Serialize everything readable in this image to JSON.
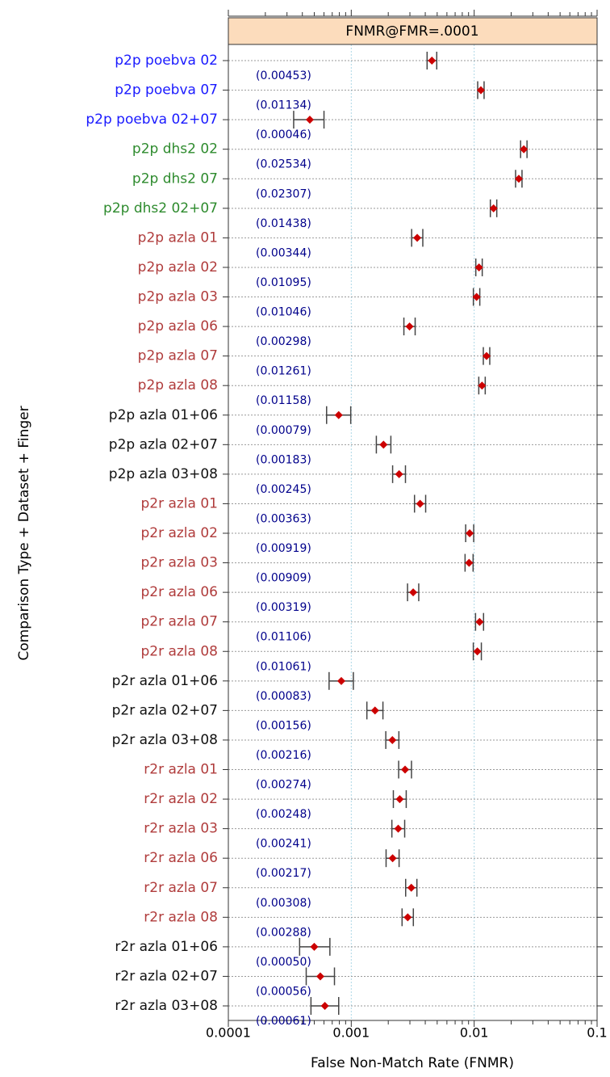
{
  "chart_data": {
    "type": "dot_errorbar",
    "strip_title": "FNMR@FMR=.0001",
    "xlabel": "False Non-Match Rate (FNMR)",
    "ylabel": "Comparison Type + Dataset + Finger",
    "xscale": "log",
    "xlim": [
      0.0001,
      0.1
    ],
    "xticks": [
      {
        "value": 0.0001,
        "label": "0.0001"
      },
      {
        "value": 0.001,
        "label": "0.001"
      },
      {
        "value": 0.01,
        "label": "0.01"
      },
      {
        "value": 0.1,
        "label": "0.1"
      }
    ],
    "grid": true,
    "point_color": "#cc0000",
    "errorbar_color": "#444444",
    "value_label_color": "#00008b",
    "strip_color": "#fcdcbc",
    "categories": [
      "p2p poebva 02",
      "p2p poebva 07",
      "p2p poebva 02+07",
      "p2p dhs2 02",
      "p2p dhs2 07",
      "p2p dhs2 02+07",
      "p2p azla 01",
      "p2p azla 02",
      "p2p azla 03",
      "p2p azla 06",
      "p2p azla 07",
      "p2p azla 08",
      "p2p azla 01+06",
      "p2p azla 02+07",
      "p2p azla 03+08",
      "p2r azla 01",
      "p2r azla 02",
      "p2r azla 03",
      "p2r azla 06",
      "p2r azla 07",
      "p2r azla 08",
      "p2r azla 01+06",
      "p2r azla 02+07",
      "p2r azla 03+08",
      "r2r azla 01",
      "r2r azla 02",
      "r2r azla 03",
      "r2r azla 06",
      "r2r azla 07",
      "r2r azla 08",
      "r2r azla 01+06",
      "r2r azla 02+07",
      "r2r azla 03+08"
    ],
    "category_colors": [
      "#1a1aff",
      "#1a1aff",
      "#1a1aff",
      "#2e8b2e",
      "#2e8b2e",
      "#2e8b2e",
      "#b03c3c",
      "#b03c3c",
      "#b03c3c",
      "#b03c3c",
      "#b03c3c",
      "#b03c3c",
      "#111111",
      "#111111",
      "#111111",
      "#b03c3c",
      "#b03c3c",
      "#b03c3c",
      "#b03c3c",
      "#b03c3c",
      "#b03c3c",
      "#111111",
      "#111111",
      "#111111",
      "#b03c3c",
      "#b03c3c",
      "#b03c3c",
      "#b03c3c",
      "#b03c3c",
      "#b03c3c",
      "#111111",
      "#111111",
      "#111111"
    ],
    "values": [
      0.00453,
      0.01134,
      0.00046,
      0.02534,
      0.02307,
      0.01438,
      0.00344,
      0.01095,
      0.01046,
      0.00298,
      0.01261,
      0.01158,
      0.00079,
      0.00183,
      0.00245,
      0.00363,
      0.00919,
      0.00909,
      0.00319,
      0.01106,
      0.01061,
      0.00083,
      0.00156,
      0.00216,
      0.00274,
      0.00248,
      0.00241,
      0.00217,
      0.00308,
      0.00288,
      0.0005,
      0.00056,
      0.00061
    ],
    "value_labels": [
      "(0.00453)",
      "(0.01134)",
      "(0.00046)",
      "(0.02534)",
      "(0.02307)",
      "(0.01438)",
      "(0.00344)",
      "(0.01095)",
      "(0.01046)",
      "(0.00298)",
      "(0.01261)",
      "(0.01158)",
      "(0.00079)",
      "(0.00183)",
      "(0.00245)",
      "(0.00363)",
      "(0.00919)",
      "(0.00909)",
      "(0.00319)",
      "(0.01106)",
      "(0.01061)",
      "(0.00083)",
      "(0.00156)",
      "(0.00216)",
      "(0.00274)",
      "(0.00248)",
      "(0.00241)",
      "(0.00217)",
      "(0.00308)",
      "(0.00288)",
      "(0.00050)",
      "(0.00056)",
      "(0.00061)"
    ],
    "lower": [
      0.00414,
      0.01068,
      0.00034,
      0.02386,
      0.02172,
      0.01354,
      0.0031,
      0.01031,
      0.00985,
      0.00268,
      0.01187,
      0.0109,
      0.00063,
      0.0016,
      0.00217,
      0.00327,
      0.00853,
      0.00843,
      0.00287,
      0.01026,
      0.00984,
      0.00066,
      0.00134,
      0.00191,
      0.00243,
      0.0022,
      0.00214,
      0.00192,
      0.00277,
      0.00259,
      0.00038,
      0.00043,
      0.00047
    ],
    "upper": [
      0.00496,
      0.01204,
      0.0006,
      0.02691,
      0.0245,
      0.01527,
      0.00382,
      0.01163,
      0.01111,
      0.00331,
      0.01339,
      0.0123,
      0.00099,
      0.0021,
      0.00276,
      0.00403,
      0.00991,
      0.0098,
      0.00354,
      0.01192,
      0.01144,
      0.00104,
      0.00181,
      0.00244,
      0.00309,
      0.0028,
      0.00272,
      0.00245,
      0.00342,
      0.0032,
      0.00067,
      0.00073,
      0.00079
    ]
  }
}
